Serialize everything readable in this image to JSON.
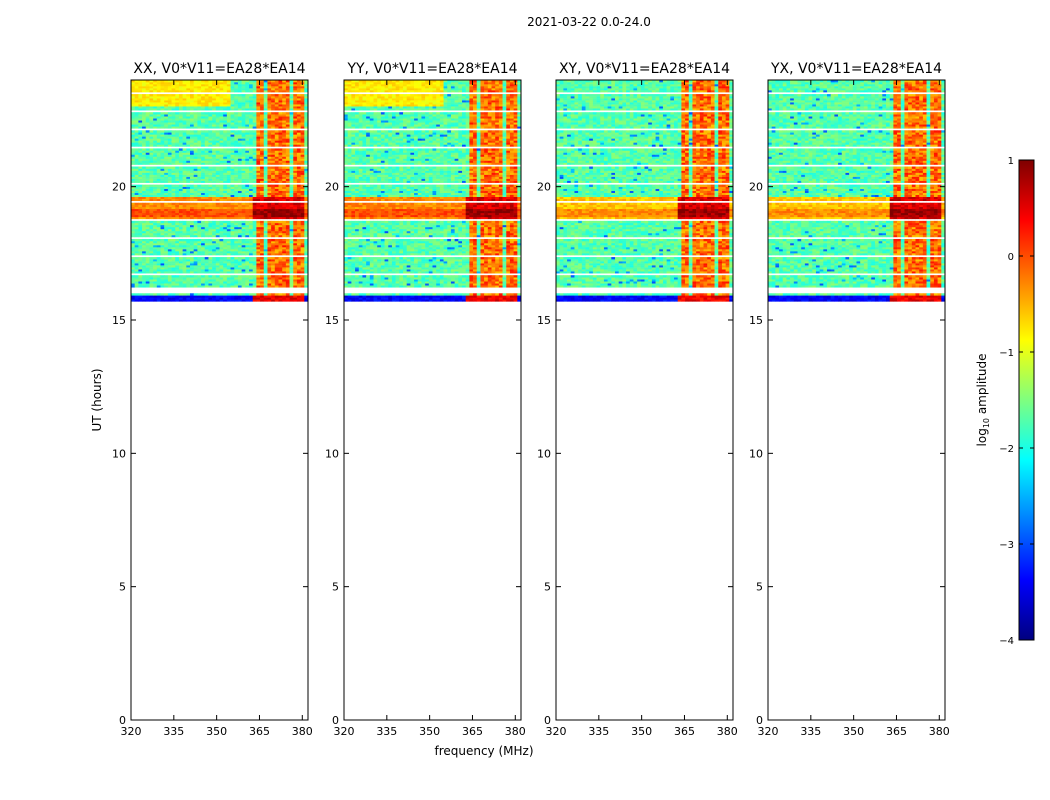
{
  "figure": {
    "title": "2021-03-22 0.0-24.0"
  },
  "chart_data": {
    "type": "heatmap",
    "xlabel": "frequency (MHz)",
    "ylabel": "UT (hours)",
    "xlim": [
      320,
      382
    ],
    "ylim": [
      0,
      24
    ],
    "xticks": [
      320,
      335,
      350,
      365,
      380
    ],
    "yticks": [
      0,
      5,
      10,
      15,
      20
    ],
    "data_time_range_hours": [
      15.7,
      24.0
    ],
    "rfi_band_mhz": [
      363,
      381
    ],
    "rfi_channel_centers_mhz": [
      365,
      369.5,
      374,
      378.5
    ],
    "strong_rfi_hours": [
      18.8,
      19.6
    ],
    "colormap": "jet",
    "panels": [
      {
        "title": "XX, V0*V11=EA28*EA14",
        "polarization": "XX"
      },
      {
        "title": "YY, V0*V11=EA28*EA14",
        "polarization": "YY"
      },
      {
        "title": "XY, V0*V11=EA28*EA14",
        "polarization": "XY"
      },
      {
        "title": "YX, V0*V11=EA28*EA14",
        "polarization": "YX"
      }
    ],
    "colorbar": {
      "label": "log",
      "label_sub": "10",
      "label_rest": " amplitude",
      "range": [
        -4,
        1
      ],
      "ticks": [
        1,
        0,
        -1,
        -2,
        -3,
        -4
      ],
      "tick_labels": [
        "1",
        "0",
        "−1",
        "−2",
        "−3",
        "−4"
      ],
      "colors": [
        "#00007f",
        "#0000ff",
        "#007fff",
        "#00ffff",
        "#7fff7f",
        "#ffff00",
        "#ff7f00",
        "#ff0000",
        "#7f0000"
      ]
    }
  }
}
